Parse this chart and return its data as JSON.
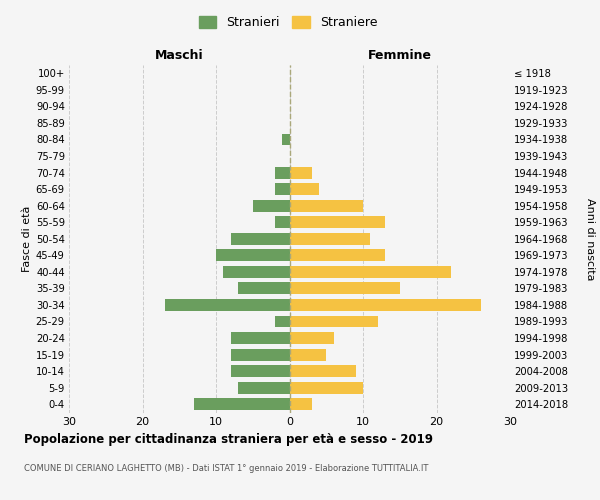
{
  "age_groups": [
    "0-4",
    "5-9",
    "10-14",
    "15-19",
    "20-24",
    "25-29",
    "30-34",
    "35-39",
    "40-44",
    "45-49",
    "50-54",
    "55-59",
    "60-64",
    "65-69",
    "70-74",
    "75-79",
    "80-84",
    "85-89",
    "90-94",
    "95-99",
    "100+"
  ],
  "birth_years": [
    "2014-2018",
    "2009-2013",
    "2004-2008",
    "1999-2003",
    "1994-1998",
    "1989-1993",
    "1984-1988",
    "1979-1983",
    "1974-1978",
    "1969-1973",
    "1964-1968",
    "1959-1963",
    "1954-1958",
    "1949-1953",
    "1944-1948",
    "1939-1943",
    "1934-1938",
    "1929-1933",
    "1924-1928",
    "1919-1923",
    "≤ 1918"
  ],
  "maschi": [
    13,
    7,
    8,
    8,
    8,
    2,
    17,
    7,
    9,
    10,
    8,
    2,
    5,
    2,
    2,
    0,
    1,
    0,
    0,
    0,
    0
  ],
  "femmine": [
    3,
    10,
    9,
    5,
    6,
    12,
    26,
    15,
    22,
    13,
    11,
    13,
    10,
    4,
    3,
    0,
    0,
    0,
    0,
    0,
    0
  ],
  "color_maschi": "#6a9e5e",
  "color_femmine": "#f5c242",
  "title": "Popolazione per cittadinanza straniera per età e sesso - 2019",
  "subtitle": "COMUNE DI CERIANO LAGHETTO (MB) - Dati ISTAT 1° gennaio 2019 - Elaborazione TUTTITALIA.IT",
  "ylabel_left": "Fasce di età",
  "ylabel_right": "Anni di nascita",
  "xlabel_left": "Maschi",
  "xlabel_right": "Femmine",
  "legend_maschi": "Stranieri",
  "legend_femmine": "Straniere",
  "xlim": 30,
  "background_color": "#f5f5f5",
  "grid_color": "#cccccc"
}
